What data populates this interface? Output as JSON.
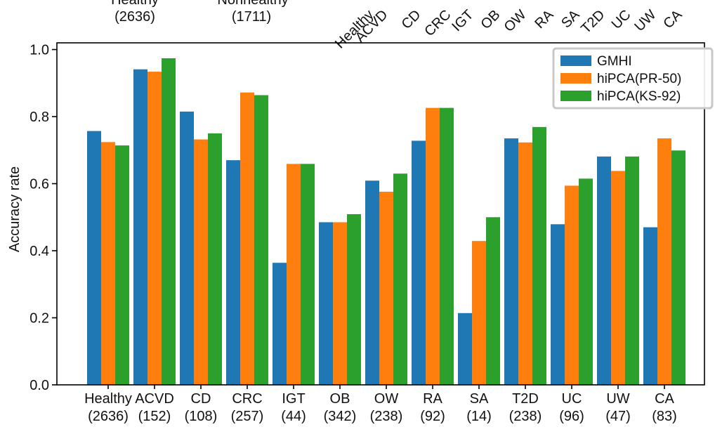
{
  "chart_data": {
    "type": "bar",
    "ylabel": "Accuracy rate",
    "ylim": [
      0,
      1.02
    ],
    "yticks": [
      "0.0",
      "0.2",
      "0.4",
      "0.6",
      "0.8",
      "1.0"
    ],
    "categories": [
      "Healthy",
      "ACVD",
      "CD",
      "CRC",
      "IGT",
      "OB",
      "OW",
      "RA",
      "SA",
      "T2D",
      "UC",
      "UW",
      "CA"
    ],
    "category_counts": [
      "(2636)",
      "(152)",
      "(108)",
      "(257)",
      "(44)",
      "(342)",
      "(238)",
      "(92)",
      "(14)",
      "(238)",
      "(96)",
      "(47)",
      "(83)"
    ],
    "series": [
      {
        "name": "GMHI",
        "color": "#1f77b4",
        "values": [
          0.757,
          0.941,
          0.815,
          0.67,
          0.364,
          0.485,
          0.609,
          0.728,
          0.214,
          0.735,
          0.479,
          0.681,
          0.47
        ]
      },
      {
        "name": "hiPCA(PR-50)",
        "color": "#ff7f0e",
        "values": [
          0.724,
          0.934,
          0.732,
          0.872,
          0.659,
          0.485,
          0.576,
          0.826,
          0.429,
          0.723,
          0.594,
          0.638,
          0.735
        ]
      },
      {
        "name": "hiPCA(KS-92)",
        "color": "#2ca02c",
        "values": [
          0.714,
          0.974,
          0.75,
          0.864,
          0.659,
          0.509,
          0.63,
          0.826,
          0.5,
          0.769,
          0.615,
          0.681,
          0.699
        ]
      }
    ],
    "legend_position": "top-right",
    "grid": false,
    "top_group_labels": [
      {
        "label": "Healthy",
        "count": "(2636)"
      },
      {
        "label": "Nonhealthy",
        "count": "(1711)"
      }
    ],
    "top_rotated_labels": [
      "Healthy",
      "ACVD",
      "CD",
      "CRC",
      "IGT",
      "OB",
      "OW",
      "RA",
      "SA",
      "T2D",
      "UC",
      "UW",
      "CA"
    ]
  }
}
